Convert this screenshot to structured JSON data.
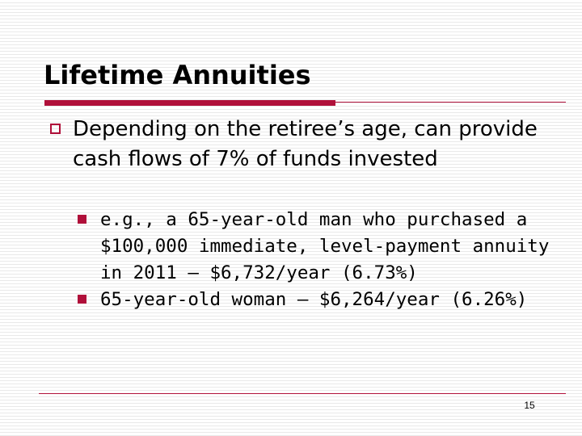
{
  "header": {
    "title": "Lifetime Annuities"
  },
  "bullets": [
    {
      "text": "Depending on the retiree’s age, can provide cash flows of 7% of funds invested",
      "sub_bullets": [
        "e.g., a 65-year-old man who purchased a $100,000 immediate, level-payment annuity in 2011 – $6,732/year (6.73%)",
        "65-year-old woman – $6,264/year (6.26%)"
      ]
    }
  ],
  "footer": {
    "page_number": "15"
  }
}
